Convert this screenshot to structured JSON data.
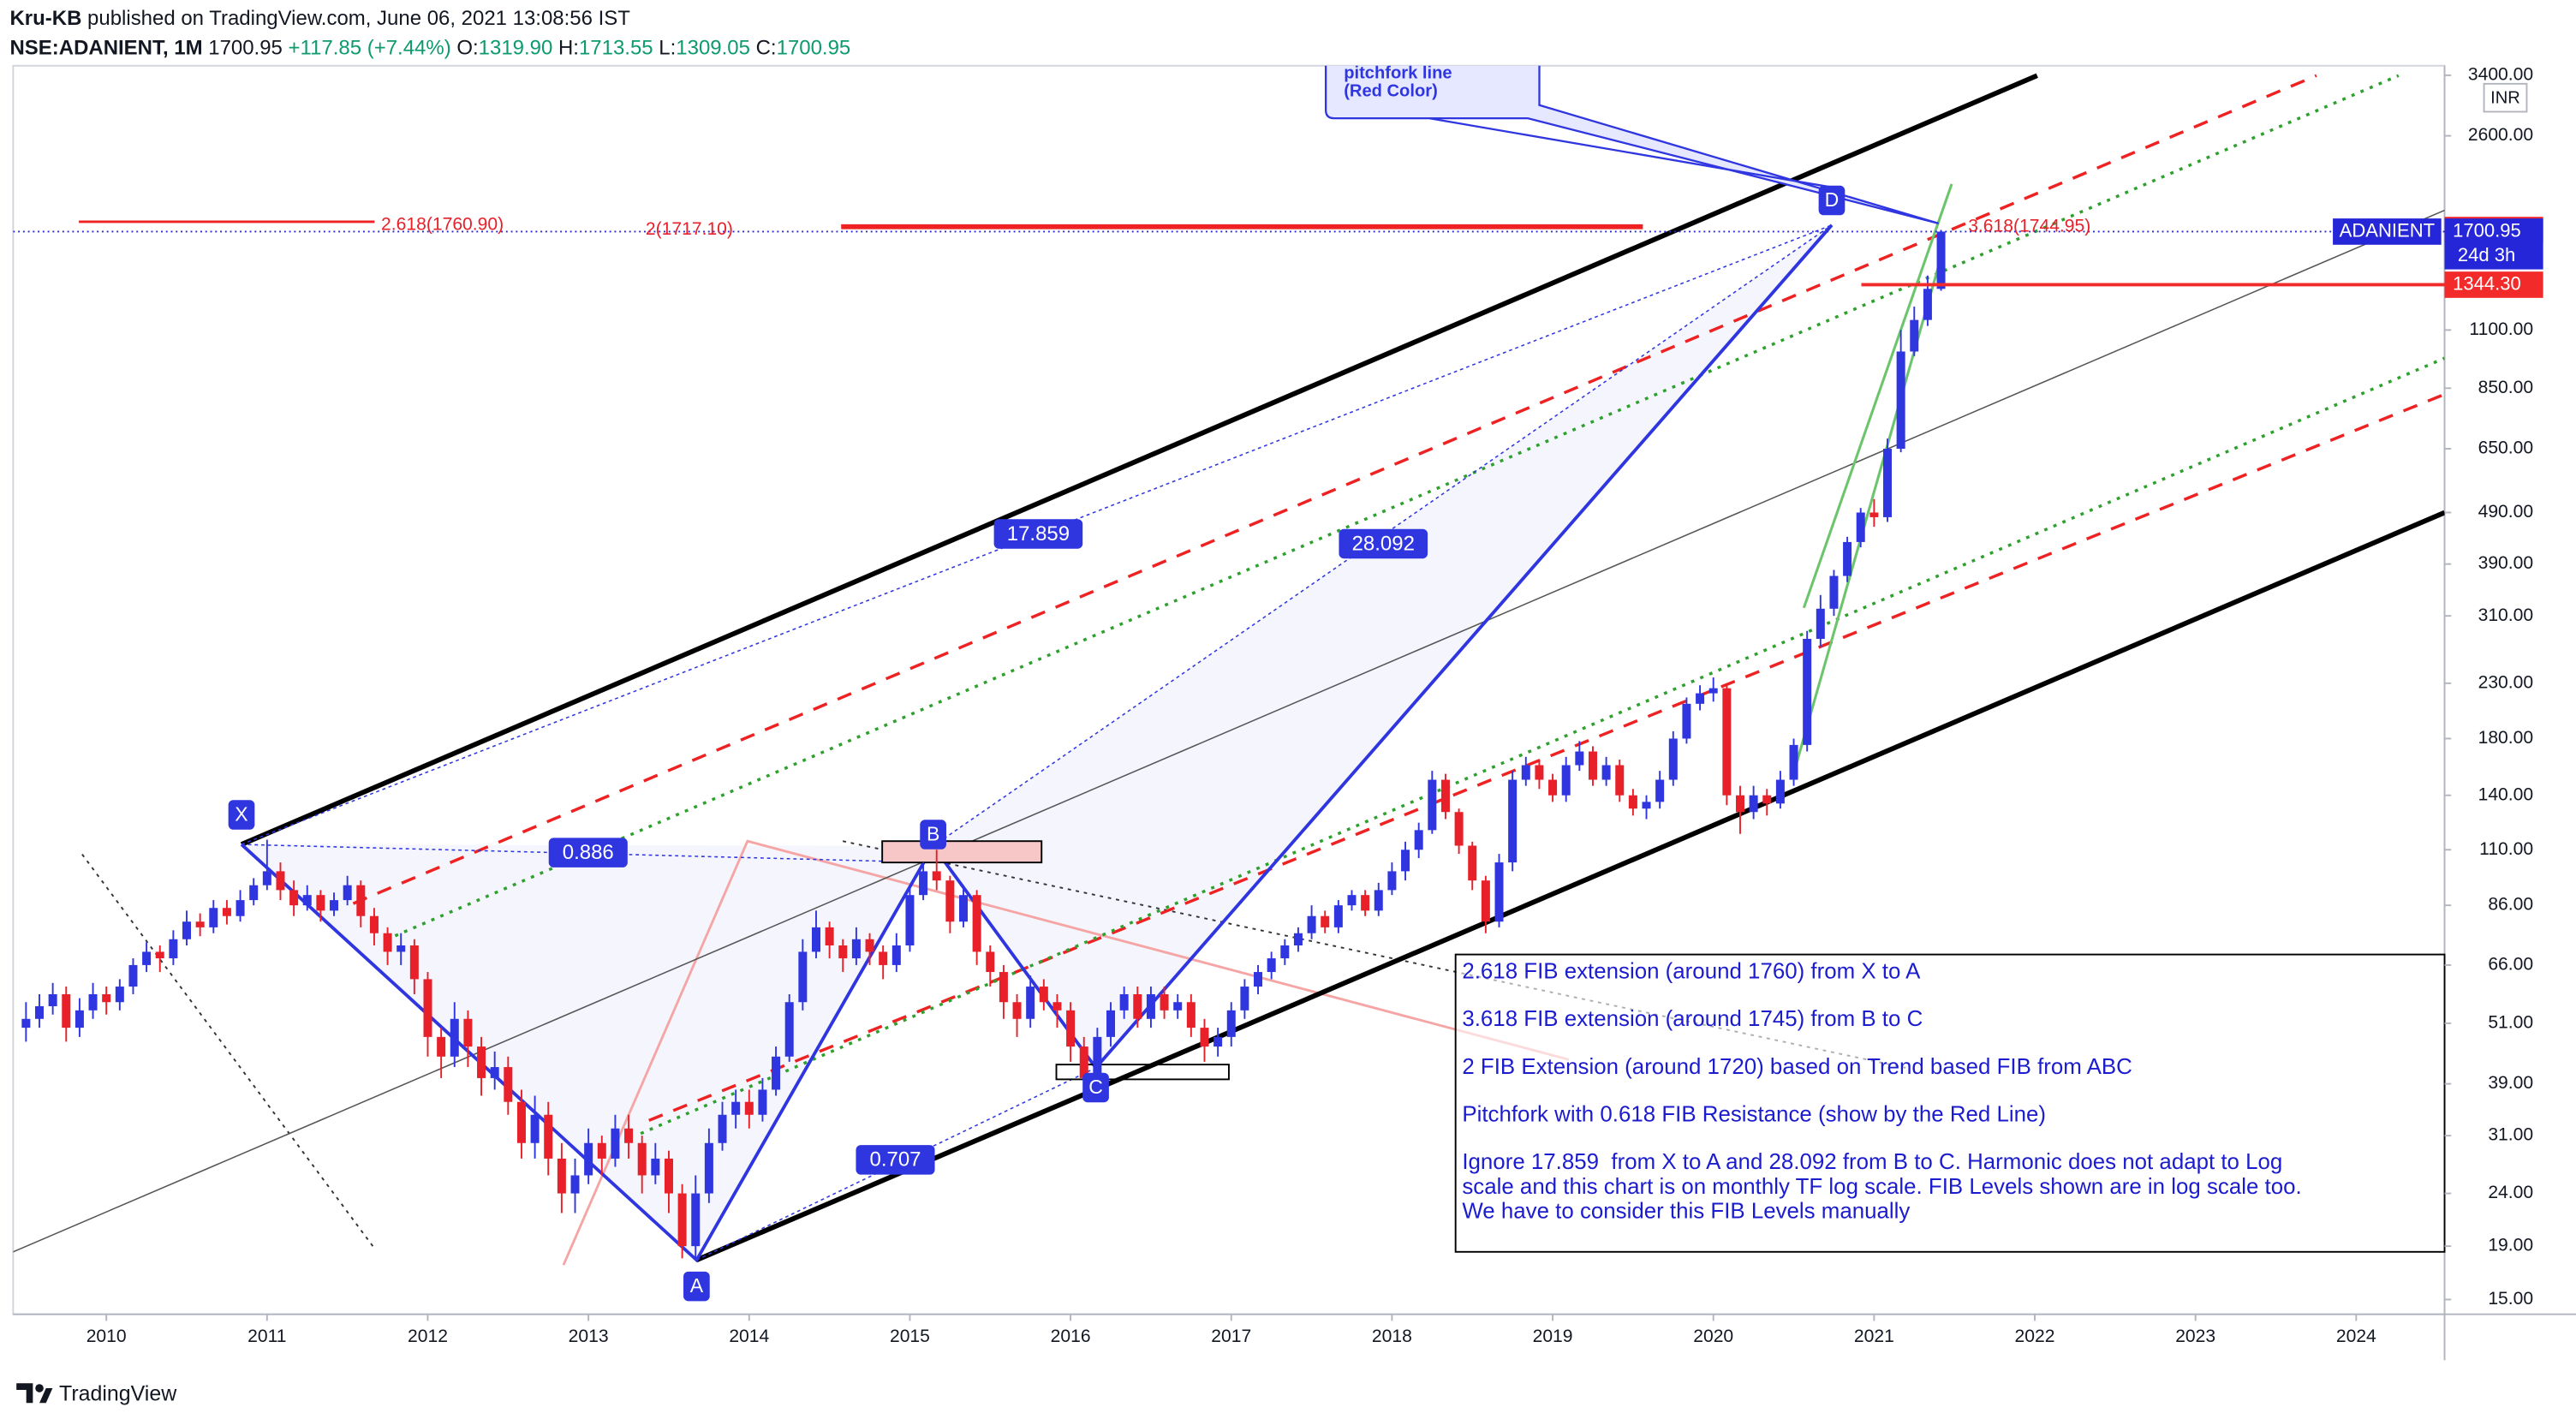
{
  "header": {
    "author": "Kru-KB",
    "published": "published on TradingView.com, June 06, 2021 13:08:56 IST"
  },
  "legend": {
    "symbol": "NSE:ADANIENT, 1M",
    "last": "1700.95",
    "change": "+117.85 (+7.44%)",
    "ohlc": [
      {
        "key": "O:",
        "value": "1319.90"
      },
      {
        "key": "H:",
        "value": "1713.55"
      },
      {
        "key": "L:",
        "value": "1309.05"
      },
      {
        "key": "C:",
        "value": "1700.95"
      }
    ]
  },
  "chart_data": {
    "type": "candlestick",
    "currency": "INR",
    "log_scale": true,
    "up_color": "#2f36e0",
    "down_color": "#e8202a",
    "x": [
      "2009-07",
      "2009-08",
      "2009-09",
      "2009-10",
      "2009-11",
      "2009-12",
      "2010-01",
      "2010-02",
      "2010-03",
      "2010-04",
      "2010-05",
      "2010-06",
      "2010-07",
      "2010-08",
      "2010-09",
      "2010-10",
      "2010-11",
      "2010-12",
      "2011-01",
      "2011-02",
      "2011-03",
      "2011-04",
      "2011-05",
      "2011-06",
      "2011-07",
      "2011-08",
      "2011-09",
      "2011-10",
      "2011-11",
      "2011-12",
      "2012-01",
      "2012-02",
      "2012-03",
      "2012-04",
      "2012-05",
      "2012-06",
      "2012-07",
      "2012-08",
      "2012-09",
      "2012-10",
      "2012-11",
      "2012-12",
      "2013-01",
      "2013-02",
      "2013-03",
      "2013-04",
      "2013-05",
      "2013-06",
      "2013-07",
      "2013-08",
      "2013-09",
      "2013-10",
      "2013-11",
      "2013-12",
      "2014-01",
      "2014-02",
      "2014-03",
      "2014-04",
      "2014-05",
      "2014-06",
      "2014-07",
      "2014-08",
      "2014-09",
      "2014-10",
      "2014-11",
      "2014-12",
      "2015-01",
      "2015-02",
      "2015-03",
      "2015-04",
      "2015-05",
      "2015-06",
      "2015-07",
      "2015-08",
      "2015-09",
      "2015-10",
      "2015-11",
      "2015-12",
      "2016-01",
      "2016-02",
      "2016-03",
      "2016-04",
      "2016-05",
      "2016-06",
      "2016-07",
      "2016-08",
      "2016-09",
      "2016-10",
      "2016-11",
      "2016-12",
      "2017-01",
      "2017-02",
      "2017-03",
      "2017-04",
      "2017-05",
      "2017-06",
      "2017-07",
      "2017-08",
      "2017-09",
      "2017-10",
      "2017-11",
      "2017-12",
      "2018-01",
      "2018-02",
      "2018-03",
      "2018-04",
      "2018-05",
      "2018-06",
      "2018-07",
      "2018-08",
      "2018-09",
      "2018-10",
      "2018-11",
      "2018-12",
      "2019-01",
      "2019-02",
      "2019-03",
      "2019-04",
      "2019-05",
      "2019-06",
      "2019-07",
      "2019-08",
      "2019-09",
      "2019-10",
      "2019-11",
      "2019-12",
      "2020-01",
      "2020-02",
      "2020-03",
      "2020-04",
      "2020-05",
      "2020-06",
      "2020-07",
      "2020-08",
      "2020-09",
      "2020-10",
      "2020-11",
      "2020-12",
      "2021-01",
      "2021-02",
      "2021-03",
      "2021-04",
      "2021-05",
      "2021-06"
    ],
    "candles": [
      [
        50,
        56,
        47,
        52
      ],
      [
        52,
        58,
        50,
        55
      ],
      [
        55,
        61,
        53,
        58
      ],
      [
        58,
        60,
        47,
        50
      ],
      [
        50,
        57,
        48,
        54
      ],
      [
        54,
        61,
        52,
        58
      ],
      [
        58,
        60,
        53,
        56
      ],
      [
        56,
        62,
        54,
        60
      ],
      [
        60,
        68,
        58,
        66
      ],
      [
        66,
        73,
        64,
        70
      ],
      [
        70,
        72,
        64,
        68
      ],
      [
        68,
        77,
        66,
        74
      ],
      [
        74,
        84,
        72,
        80
      ],
      [
        80,
        83,
        75,
        78
      ],
      [
        78,
        88,
        76,
        85
      ],
      [
        85,
        88,
        79,
        82
      ],
      [
        82,
        92,
        80,
        88
      ],
      [
        88,
        97,
        86,
        94
      ],
      [
        94,
        115,
        92,
        100
      ],
      [
        100,
        104,
        88,
        92
      ],
      [
        92,
        96,
        82,
        86
      ],
      [
        86,
        94,
        84,
        90
      ],
      [
        90,
        92,
        80,
        84
      ],
      [
        84,
        91,
        82,
        88
      ],
      [
        88,
        98,
        86,
        94
      ],
      [
        94,
        96,
        78,
        82
      ],
      [
        82,
        85,
        72,
        76
      ],
      [
        76,
        78,
        66,
        70
      ],
      [
        70,
        76,
        66,
        72
      ],
      [
        72,
        74,
        58,
        62
      ],
      [
        62,
        64,
        44,
        48
      ],
      [
        48,
        50,
        40,
        44
      ],
      [
        44,
        56,
        42,
        52
      ],
      [
        52,
        54,
        42,
        46
      ],
      [
        46,
        48,
        37,
        40
      ],
      [
        40,
        45,
        38,
        42
      ],
      [
        42,
        44,
        34,
        36
      ],
      [
        36,
        38,
        28,
        30
      ],
      [
        30,
        37,
        28,
        34
      ],
      [
        34,
        36,
        26,
        28
      ],
      [
        28,
        30,
        22,
        24
      ],
      [
        24,
        28,
        22,
        26
      ],
      [
        26,
        32,
        25,
        30
      ],
      [
        30,
        31,
        26,
        28
      ],
      [
        28,
        34,
        27,
        32
      ],
      [
        32,
        34,
        28,
        30
      ],
      [
        30,
        31,
        24,
        26
      ],
      [
        26,
        30,
        25,
        28
      ],
      [
        28,
        29,
        22,
        24
      ],
      [
        24,
        25,
        18,
        19
      ],
      [
        19,
        26,
        18,
        24
      ],
      [
        24,
        32,
        23,
        30
      ],
      [
        30,
        36,
        29,
        34
      ],
      [
        34,
        38,
        32,
        36
      ],
      [
        36,
        38,
        32,
        34
      ],
      [
        34,
        40,
        33,
        38
      ],
      [
        38,
        46,
        37,
        44
      ],
      [
        44,
        58,
        43,
        56
      ],
      [
        56,
        74,
        54,
        70
      ],
      [
        70,
        84,
        68,
        78
      ],
      [
        78,
        80,
        68,
        72
      ],
      [
        72,
        74,
        64,
        68
      ],
      [
        68,
        78,
        66,
        74
      ],
      [
        74,
        76,
        66,
        70
      ],
      [
        70,
        72,
        62,
        66
      ],
      [
        66,
        76,
        64,
        72
      ],
      [
        72,
        94,
        70,
        90
      ],
      [
        90,
        104,
        88,
        100
      ],
      [
        100,
        110,
        92,
        96
      ],
      [
        96,
        98,
        76,
        80
      ],
      [
        80,
        94,
        78,
        90
      ],
      [
        90,
        92,
        66,
        70
      ],
      [
        70,
        72,
        60,
        64
      ],
      [
        64,
        66,
        52,
        56
      ],
      [
        56,
        58,
        48,
        52
      ],
      [
        52,
        63,
        50,
        60
      ],
      [
        60,
        62,
        54,
        56
      ],
      [
        56,
        58,
        50,
        54
      ],
      [
        54,
        56,
        43,
        46
      ],
      [
        46,
        48,
        38,
        40
      ],
      [
        40,
        50,
        39,
        48
      ],
      [
        48,
        56,
        46,
        54
      ],
      [
        54,
        60,
        52,
        58
      ],
      [
        58,
        60,
        50,
        52
      ],
      [
        52,
        60,
        50,
        58
      ],
      [
        58,
        60,
        52,
        54
      ],
      [
        54,
        58,
        52,
        56
      ],
      [
        56,
        58,
        48,
        50
      ],
      [
        50,
        52,
        43,
        46
      ],
      [
        46,
        50,
        44,
        48
      ],
      [
        48,
        56,
        46,
        54
      ],
      [
        54,
        62,
        52,
        60
      ],
      [
        60,
        66,
        58,
        64
      ],
      [
        64,
        70,
        62,
        68
      ],
      [
        68,
        74,
        66,
        72
      ],
      [
        72,
        78,
        70,
        76
      ],
      [
        76,
        86,
        74,
        82
      ],
      [
        82,
        84,
        76,
        78
      ],
      [
        78,
        88,
        76,
        86
      ],
      [
        86,
        92,
        84,
        90
      ],
      [
        90,
        92,
        82,
        84
      ],
      [
        84,
        95,
        82,
        92
      ],
      [
        92,
        104,
        90,
        100
      ],
      [
        100,
        114,
        96,
        110
      ],
      [
        110,
        124,
        106,
        120
      ],
      [
        120,
        156,
        118,
        150
      ],
      [
        150,
        154,
        126,
        130
      ],
      [
        130,
        132,
        108,
        112
      ],
      [
        112,
        114,
        92,
        96
      ],
      [
        96,
        98,
        76,
        80
      ],
      [
        80,
        108,
        78,
        104
      ],
      [
        104,
        156,
        100,
        150
      ],
      [
        150,
        166,
        146,
        160
      ],
      [
        160,
        164,
        144,
        150
      ],
      [
        150,
        154,
        136,
        140
      ],
      [
        140,
        166,
        136,
        160
      ],
      [
        160,
        178,
        156,
        170
      ],
      [
        170,
        174,
        146,
        150
      ],
      [
        150,
        166,
        146,
        160
      ],
      [
        160,
        164,
        136,
        140
      ],
      [
        140,
        144,
        128,
        132
      ],
      [
        132,
        140,
        126,
        136
      ],
      [
        136,
        156,
        132,
        150
      ],
      [
        150,
        186,
        146,
        180
      ],
      [
        180,
        216,
        176,
        210
      ],
      [
        210,
        228,
        204,
        220
      ],
      [
        220,
        236,
        212,
        225
      ],
      [
        225,
        230,
        134,
        140
      ],
      [
        140,
        146,
        118,
        130
      ],
      [
        130,
        146,
        126,
        140
      ],
      [
        140,
        144,
        128,
        135
      ],
      [
        135,
        156,
        132,
        150
      ],
      [
        150,
        180,
        146,
        175
      ],
      [
        175,
        290,
        170,
        280
      ],
      [
        280,
        340,
        270,
        320
      ],
      [
        320,
        380,
        310,
        370
      ],
      [
        370,
        440,
        360,
        430
      ],
      [
        430,
        500,
        420,
        490
      ],
      [
        490,
        520,
        460,
        480
      ],
      [
        480,
        680,
        470,
        650
      ],
      [
        650,
        1100,
        640,
        1000
      ],
      [
        1000,
        1220,
        980,
        1150
      ],
      [
        1150,
        1400,
        1120,
        1319.9
      ],
      [
        1319.9,
        1713.55,
        1309.05,
        1700.95
      ]
    ],
    "xlim": [
      2009.42,
      2024.55
    ],
    "xticks": [
      2010,
      2011,
      2012,
      2013,
      2014,
      2015,
      2016,
      2017,
      2018,
      2019,
      2020,
      2021,
      2022,
      2023,
      2024
    ],
    "ylim": [
      14.05,
      3547
    ],
    "yticks": [
      {
        "value": 15,
        "label": "15.00"
      },
      {
        "value": 19,
        "label": "19.00"
      },
      {
        "value": 24,
        "label": "24.00"
      },
      {
        "value": 31,
        "label": "31.00"
      },
      {
        "value": 39,
        "label": "39.00"
      },
      {
        "value": 51,
        "label": "51.00"
      },
      {
        "value": 66,
        "label": "66.00"
      },
      {
        "value": 86,
        "label": "86.00"
      },
      {
        "value": 110,
        "label": "110.00"
      },
      {
        "value": 140,
        "label": "140.00"
      },
      {
        "value": 180,
        "label": "180.00"
      },
      {
        "value": 230,
        "label": "230.00"
      },
      {
        "value": 310,
        "label": "310.00"
      },
      {
        "value": 390,
        "label": "390.00"
      },
      {
        "value": 490,
        "label": "490.00"
      },
      {
        "value": 650,
        "label": "650.00"
      },
      {
        "value": 850,
        "label": "850.00"
      },
      {
        "value": 1100,
        "label": "1100.00"
      },
      {
        "value": 2600,
        "label": "2600.00"
      },
      {
        "value": 3400,
        "label": "3400.00"
      }
    ],
    "price_lines": [
      {
        "value": 1713.45,
        "color": "#f22a2a",
        "style": "solid"
      },
      {
        "value": 1700.95,
        "color": "#2626d9",
        "style": "dotted",
        "symbol": "ADANIENT",
        "countdown": "24d 3h"
      },
      {
        "value": 1344.3,
        "label": "1344.30",
        "color": "#f22a2a",
        "style": "solid"
      }
    ],
    "annotations": {
      "points": [
        "X",
        "A",
        "B",
        "C",
        "D"
      ],
      "ratios": [
        "17.859",
        "28.092",
        "0.886",
        "0.707"
      ],
      "fib_labels": [
        "2.618(1760.90)",
        "2(1717.10)",
        "3.618(1744.95)"
      ],
      "callout": [
        "pitchfork line",
        "(Red Color)"
      ],
      "notes": [
        "2.618 FIB extension (around 1760) from X to A",
        "3.618 FIB extension (around 1745) from B to C",
        "2 FIB Extension (around 1720) based on Trend based FIB from ABC",
        "Pitchfork with 0.618 FIB Resistance (show by the Red Line)",
        "Ignore 17.859  from X to A and 28.092 from B to C. Harmonic does not adapt to Log",
        "scale and this chart is on monthly TF log scale. FIB Levels shown are in log scale too.",
        "We have to consider this FIB Levels manually"
      ]
    }
  },
  "footer": "TradingView"
}
